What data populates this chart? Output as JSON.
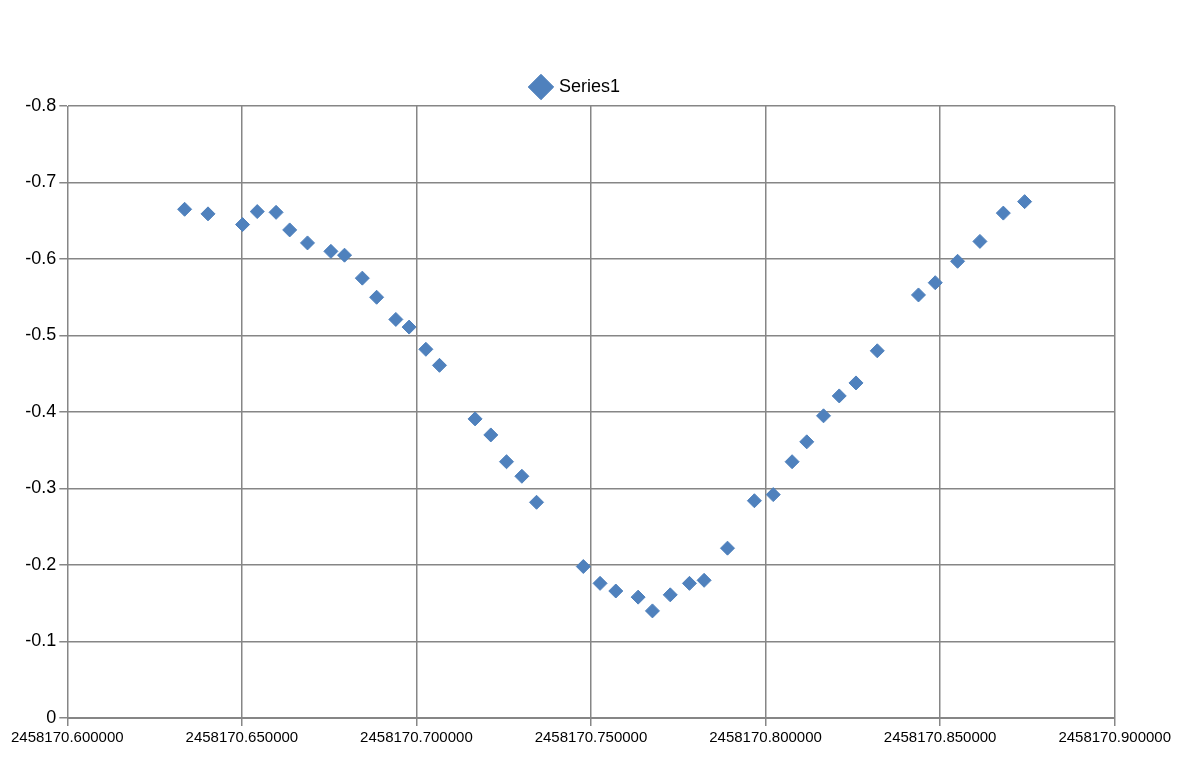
{
  "chart_data": {
    "type": "scatter",
    "marker": "diamond",
    "grid": true,
    "legend": "top",
    "xlim": [
      2458170.6,
      2458170.9
    ],
    "xticks": [
      {
        "value": 2458170.6,
        "label": "2458170.600000"
      },
      {
        "value": 2458170.65,
        "label": "2458170.650000"
      },
      {
        "value": 2458170.7,
        "label": "2458170.700000"
      },
      {
        "value": 2458170.75,
        "label": "2458170.750000"
      },
      {
        "value": 2458170.8,
        "label": "2458170.800000"
      },
      {
        "value": 2458170.85,
        "label": "2458170.850000"
      },
      {
        "value": 2458170.9,
        "label": "2458170.900000"
      }
    ],
    "ylim": [
      0,
      -0.8
    ],
    "yticks": [
      0,
      -0.1,
      -0.2,
      -0.3,
      -0.4,
      -0.5,
      -0.6,
      -0.7,
      -0.8
    ],
    "x": [
      2458170.6336,
      2458170.6403,
      2458170.6502,
      2458170.6544,
      2458170.6598,
      2458170.6637,
      2458170.6688,
      2458170.6755,
      2458170.6794,
      2458170.6845,
      2458170.6886,
      2458170.6941,
      2458170.6979,
      2458170.7027,
      2458170.7066,
      2458170.7168,
      2458170.7213,
      2458170.7258,
      2458170.7302,
      2458170.7344,
      2458170.7478,
      2458170.7526,
      2458170.7571,
      2458170.7635,
      2458170.7676,
      2458170.7727,
      2458170.7782,
      2458170.7824,
      2458170.7891,
      2458170.7968,
      2458170.8022,
      2458170.8076,
      2458170.8118,
      2458170.8166,
      2458170.8211,
      2458170.8259,
      2458170.832,
      2458170.8438,
      2458170.8486,
      2458170.855,
      2458170.8614,
      2458170.8681,
      2458170.8742
    ],
    "series": [
      {
        "name": "Series1",
        "color": "#4f81bd",
        "values": [
          -0.665,
          -0.659,
          -0.645,
          -0.662,
          -0.661,
          -0.638,
          -0.621,
          -0.61,
          -0.605,
          -0.575,
          -0.55,
          -0.521,
          -0.511,
          -0.482,
          -0.461,
          -0.391,
          -0.37,
          -0.335,
          -0.316,
          -0.282,
          -0.198,
          -0.176,
          -0.166,
          -0.158,
          -0.14,
          -0.161,
          -0.176,
          -0.18,
          -0.222,
          -0.284,
          -0.292,
          -0.335,
          -0.361,
          -0.395,
          -0.421,
          -0.438,
          -0.48,
          -0.553,
          -0.569,
          -0.597,
          -0.623,
          -0.66,
          -0.675
        ]
      }
    ]
  }
}
